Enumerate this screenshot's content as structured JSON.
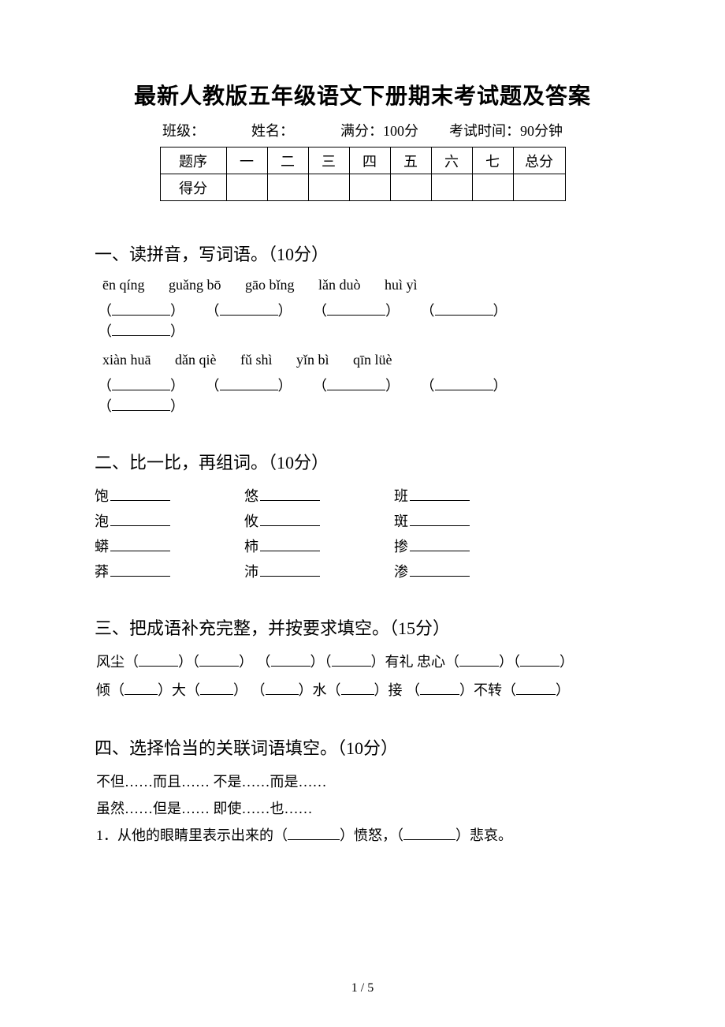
{
  "doc": {
    "title": "最新人教版五年级语文下册期末考试题及答案",
    "meta": {
      "class_label": "班级：",
      "name_label": "姓名：",
      "full_score_label": "满分：100分",
      "time_label": "考试时间：90分钟"
    },
    "score_table": {
      "row_label_seq": "题序",
      "row_label_score": "得分",
      "cols": [
        "一",
        "二",
        "三",
        "四",
        "五",
        "六",
        "七"
      ],
      "total_label": "总分"
    },
    "sections": {
      "s1": {
        "heading": "一、读拼音，写词语。（10分）",
        "pinyin_rows": [
          [
            "ēn qíng",
            "guǎng bō",
            "gāo bǐng",
            "lǎn duò",
            "huì yì"
          ],
          [
            "xiàn huā",
            "dǎn qiè",
            "fǔ shì",
            "yǐn bì",
            "qīn lüè"
          ]
        ]
      },
      "s2": {
        "heading": "二、比一比，再组词。（10分）",
        "pairs": [
          [
            "饱",
            "悠",
            "班"
          ],
          [
            "泡",
            "攸",
            "斑"
          ],
          [
            "蟒",
            "柿",
            "掺"
          ],
          [
            "莽",
            "沛",
            "渗"
          ]
        ]
      },
      "s3": {
        "heading": "三、把成语补充完整，并按要求填空。（15分）",
        "line1_parts": [
          "风尘（",
          "）（",
          "）  （",
          "）（",
          "）有礼   忠心（",
          "）（",
          "）"
        ],
        "line2_parts": [
          "倾（",
          "）大（",
          "）  （",
          "）水（",
          "）接   （",
          "）不转（",
          "）"
        ]
      },
      "s4": {
        "heading": "四、选择恰当的关联词语填空。（10分）",
        "conj1": "不但……而且……    不是……而是……",
        "conj2": "虽然……但是……    即使……也……",
        "q1_pre": "1．从他的眼睛里表示出来的（",
        "q1_mid": "）愤怒，（",
        "q1_post": "）悲哀。"
      }
    },
    "page_num": "1 / 5",
    "colors": {
      "text": "#000000",
      "bg": "#ffffff",
      "border": "#000000"
    },
    "typography": {
      "title_fontsize": 28,
      "heading_fontsize": 22,
      "body_fontsize": 18,
      "font_family": "SimSun"
    }
  }
}
